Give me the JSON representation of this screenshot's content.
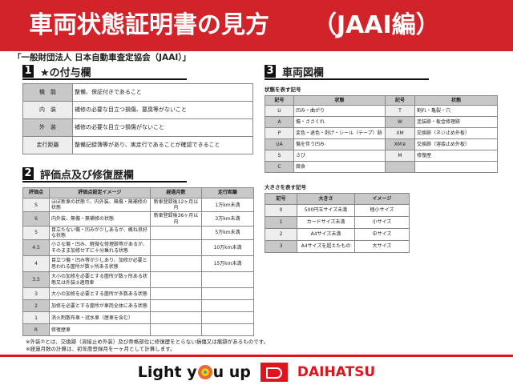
{
  "header": {
    "title": "車両状態証明書の見方",
    "title_suffix": "（JAAI編）"
  },
  "subtitle": "「一般財団法人 日本自動車査定協会（JAAI）」",
  "section1": {
    "number": "1",
    "title": "★の付与欄",
    "rows": [
      {
        "label": "機　能",
        "text": "整備、保証付きであること"
      },
      {
        "label": "内　装",
        "text": "補修の必要な目立つ損傷、悪臭等がないこと"
      },
      {
        "label": "外　装",
        "text": "補修の必要な目立つ損傷がないこと"
      },
      {
        "label": "走行距離",
        "text": "整備記録簿等があり、実走行であることが確認できること"
      }
    ]
  },
  "section2": {
    "number": "2",
    "title": "評価点及び修復歴欄",
    "headers": [
      "評価点",
      "評価点設定イメージ",
      "経過月数",
      "走行距離"
    ],
    "rows": [
      {
        "score": "S",
        "image": "ほぼ新車の状態で、内外装、無傷・無補修の状態",
        "months": "新車登録後12ヶ月以内",
        "mileage": "1万km未満"
      },
      {
        "score": "6",
        "image": "内外装、無傷・無補修の状態",
        "months": "新車登録後36ヶ月以内",
        "mileage": "3万km未満"
      },
      {
        "score": "5",
        "image": "目立たない傷・凹みが少しあるが、概ね良好な状態",
        "months": "",
        "mileage": "5万km未満"
      },
      {
        "score": "4.5",
        "image": "小さな傷・凹み、軽微な修理跡等があるが、そのまま加修せずに十分乗れる状態",
        "months": "",
        "mileage": "10万km未満"
      },
      {
        "score": "4",
        "image": "目立つ傷・凹み等が少しあり、加修が必要と思われる箇所が数ヶ所ある状態",
        "months": "",
        "mileage": "15万km未満"
      },
      {
        "score": "3.5",
        "image": "大小の加修を必要とする箇所が数ヶ所ある状態又は外装②適用車",
        "months": "",
        "mileage": ""
      },
      {
        "score": "3",
        "image": "大小の加修を必要とする箇所が多数ある状態",
        "months": "",
        "mileage": ""
      },
      {
        "score": "2",
        "image": "加修を必要とする箇所が車両全体にある状態",
        "months": "",
        "mileage": ""
      },
      {
        "score": "1",
        "image": "消火剤散布車・冠水車（歴車を含む）",
        "months": "",
        "mileage": ""
      },
      {
        "score": "R",
        "image": "修復歴車",
        "months": "",
        "mileage": ""
      }
    ]
  },
  "notes": [
    "※外装②とは、交換跡（溶接止め外装）及び骨格部位に修復歴をとらない損傷又は痕跡があるものです。",
    "※経過月数の計算は、初年度登録月を一ヶ月として計算します。"
  ],
  "section3": {
    "number": "3",
    "title": "車両図欄",
    "state_label": "状態を表す記号",
    "state_headers": [
      "記号",
      "状態",
      "記号",
      "状態"
    ],
    "state_rows": [
      [
        "U",
        "凹み・曲がり",
        "T",
        "割れ・亀裂・穴"
      ],
      [
        "A",
        "傷・ささくれ",
        "W",
        "塗装跡・板金修理跡"
      ],
      [
        "P",
        "変色・退色・剥げ・シール（テープ）跡",
        "XM",
        "交換跡（ネジ止め外板）"
      ],
      [
        "UA",
        "傷を伴う凹み",
        "XM②",
        "交換跡（溶接止め外板）"
      ],
      [
        "S",
        "さび",
        "M",
        "修復歴"
      ],
      [
        "C",
        "腐食",
        "",
        ""
      ]
    ],
    "size_label": "大きさを表す記号",
    "size_headers": [
      "記号",
      "大きさ",
      "イメージ"
    ],
    "size_rows": [
      [
        "0",
        "500円玉サイズ未満",
        "極小サイズ"
      ],
      [
        "1",
        "カードサイズ未満",
        "小サイズ"
      ],
      [
        "2",
        "A4サイズ未満",
        "中サイズ"
      ],
      [
        "3",
        "A4サイズを超えたもの",
        "大サイズ"
      ]
    ]
  },
  "footer": {
    "slogan_pre": "Light y",
    "slogan_post": "u up",
    "brand": "DAIHATSU"
  },
  "colors": {
    "accent": "#d2232a",
    "brand": "#e0141e"
  }
}
